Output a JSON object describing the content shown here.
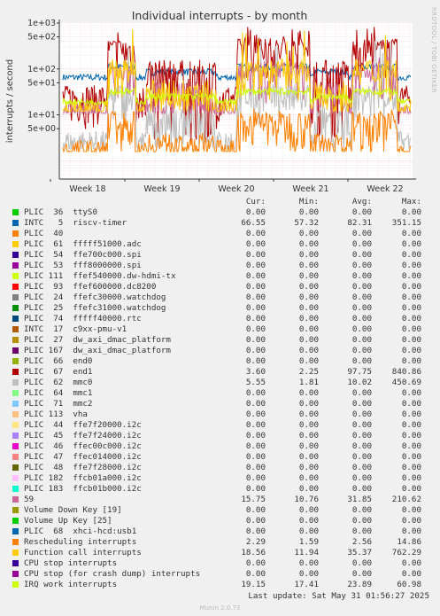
{
  "chart_data": {
    "type": "line",
    "title": "Individual interrupts - by month",
    "ylabel": "interrupts / second",
    "yscale": "log",
    "ylim": [
      0.4,
      1000
    ],
    "y_ticks": [
      {
        "value": 1000,
        "label": "1e+03"
      },
      {
        "value": 500,
        "label": "5e+02"
      },
      {
        "value": 100,
        "label": "1e+02"
      },
      {
        "value": 50,
        "label": "5e+01"
      },
      {
        "value": 10,
        "label": "1e+01"
      },
      {
        "value": 5,
        "label": "5e+00"
      }
    ],
    "x_ticks": [
      "Week 18",
      "Week 19",
      "Week 20",
      "Week 21",
      "Week 22"
    ],
    "columns": [
      "Cur:",
      "Min:",
      "Avg:",
      "Max:"
    ],
    "series": [
      {
        "label": "PLIC  36  ttyS0",
        "color": "#00cc00",
        "cur": "0.00",
        "min": "0.00",
        "avg": "0.00",
        "max": "0.00"
      },
      {
        "label": "INTC   5  riscv-timer",
        "color": "#0066b3",
        "cur": "66.55",
        "min": "57.32",
        "avg": "82.31",
        "max": "351.15"
      },
      {
        "label": "PLIC  40",
        "color": "#ff8000",
        "cur": "0.00",
        "min": "0.00",
        "avg": "0.00",
        "max": "0.00"
      },
      {
        "label": "PLIC  61  fffff51000.adc",
        "color": "#ffcc00",
        "cur": "0.00",
        "min": "0.00",
        "avg": "0.00",
        "max": "0.00"
      },
      {
        "label": "PLIC  54  ffe700c000.spi",
        "color": "#330099",
        "cur": "0.00",
        "min": "0.00",
        "avg": "0.00",
        "max": "0.00"
      },
      {
        "label": "PLIC  53  fff8000000.spi",
        "color": "#990099",
        "cur": "0.00",
        "min": "0.00",
        "avg": "0.00",
        "max": "0.00"
      },
      {
        "label": "PLIC 111  ffef540000.dw-hdmi-tx",
        "color": "#ccff00",
        "cur": "0.00",
        "min": "0.00",
        "avg": "0.00",
        "max": "0.00"
      },
      {
        "label": "PLIC  93  ffef600000.dc8200",
        "color": "#ff0000",
        "cur": "0.00",
        "min": "0.00",
        "avg": "0.00",
        "max": "0.00"
      },
      {
        "label": "PLIC  24  ffefc30000.watchdog",
        "color": "#808080",
        "cur": "0.00",
        "min": "0.00",
        "avg": "0.00",
        "max": "0.00"
      },
      {
        "label": "PLIC  25  ffefc31000.watchdog",
        "color": "#008f00",
        "cur": "0.00",
        "min": "0.00",
        "avg": "0.00",
        "max": "0.00"
      },
      {
        "label": "PLIC  74  fffff40000.rtc",
        "color": "#00487d",
        "cur": "0.00",
        "min": "0.00",
        "avg": "0.00",
        "max": "0.00"
      },
      {
        "label": "INTC  17  c9xx-pmu-v1",
        "color": "#b35a00",
        "cur": "0.00",
        "min": "0.00",
        "avg": "0.00",
        "max": "0.00"
      },
      {
        "label": "PLIC  27  dw_axi_dmac_platform",
        "color": "#b38f00",
        "cur": "0.00",
        "min": "0.00",
        "avg": "0.00",
        "max": "0.00"
      },
      {
        "label": "PLIC 167  dw_axi_dmac_platform",
        "color": "#6b006b",
        "cur": "0.00",
        "min": "0.00",
        "avg": "0.00",
        "max": "0.00"
      },
      {
        "label": "PLIC  66  end0",
        "color": "#8fb300",
        "cur": "0.00",
        "min": "0.00",
        "avg": "0.00",
        "max": "0.00"
      },
      {
        "label": "PLIC  67  end1",
        "color": "#b30000",
        "cur": "3.60",
        "min": "2.25",
        "avg": "97.75",
        "max": "840.86"
      },
      {
        "label": "PLIC  62  mmc0",
        "color": "#bebebe",
        "cur": "5.55",
        "min": "1.81",
        "avg": "10.02",
        "max": "450.69"
      },
      {
        "label": "PLIC  64  mmc1",
        "color": "#80ff80",
        "cur": "0.00",
        "min": "0.00",
        "avg": "0.00",
        "max": "0.00"
      },
      {
        "label": "PLIC  71  mmc2",
        "color": "#80c9ff",
        "cur": "0.00",
        "min": "0.00",
        "avg": "0.00",
        "max": "0.00"
      },
      {
        "label": "PLIC 113  vha",
        "color": "#ffc080",
        "cur": "0.00",
        "min": "0.00",
        "avg": "0.00",
        "max": "0.00"
      },
      {
        "label": "PLIC  44  ffe7f20000.i2c",
        "color": "#ffe680",
        "cur": "0.00",
        "min": "0.00",
        "avg": "0.00",
        "max": "0.00"
      },
      {
        "label": "PLIC  45  ffe7f24000.i2c",
        "color": "#aa80ff",
        "cur": "0.00",
        "min": "0.00",
        "avg": "0.00",
        "max": "0.00"
      },
      {
        "label": "PLIC  46  ffec00c000.i2c",
        "color": "#ee00cc",
        "cur": "0.00",
        "min": "0.00",
        "avg": "0.00",
        "max": "0.00"
      },
      {
        "label": "PLIC  47  ffec014000.i2c",
        "color": "#ff8080",
        "cur": "0.00",
        "min": "0.00",
        "avg": "0.00",
        "max": "0.00"
      },
      {
        "label": "PLIC  48  ffe7f28000.i2c",
        "color": "#666600",
        "cur": "0.00",
        "min": "0.00",
        "avg": "0.00",
        "max": "0.00"
      },
      {
        "label": "PLIC 182  ffcb01a000.i2c",
        "color": "#ffbfff",
        "cur": "0.00",
        "min": "0.00",
        "avg": "0.00",
        "max": "0.00"
      },
      {
        "label": "PLIC 183  ffcb01b000.i2c",
        "color": "#00ffcc",
        "cur": "0.00",
        "min": "0.00",
        "avg": "0.00",
        "max": "0.00"
      },
      {
        "label": "59",
        "color": "#cc6699",
        "cur": "15.75",
        "min": "10.76",
        "avg": "31.85",
        "max": "210.62"
      },
      {
        "label": "Volume Down Key [19]",
        "color": "#999900",
        "cur": "0.00",
        "min": "0.00",
        "avg": "0.00",
        "max": "0.00"
      },
      {
        "label": "Volume Up Key [25]",
        "color": "#00cc00",
        "cur": "0.00",
        "min": "0.00",
        "avg": "0.00",
        "max": "0.00"
      },
      {
        "label": "PLIC  68  xhci-hcd:usb1",
        "color": "#0066b3",
        "cur": "0.00",
        "min": "0.00",
        "avg": "0.00",
        "max": "0.00"
      },
      {
        "label": "Rescheduling interrupts",
        "color": "#ff8000",
        "cur": "2.29",
        "min": "1.59",
        "avg": "2.56",
        "max": "14.86"
      },
      {
        "label": "Function call interrupts",
        "color": "#ffcc00",
        "cur": "18.56",
        "min": "11.94",
        "avg": "35.37",
        "max": "762.29"
      },
      {
        "label": "CPU stop interrupts",
        "color": "#330099",
        "cur": "0.00",
        "min": "0.00",
        "avg": "0.00",
        "max": "0.00"
      },
      {
        "label": "CPU stop (for crash dump) interrupts",
        "color": "#990099",
        "cur": "0.00",
        "min": "0.00",
        "avg": "0.00",
        "max": "0.00"
      },
      {
        "label": "IRQ work interrupts",
        "color": "#ccff00",
        "cur": "19.15",
        "min": "17.41",
        "avg": "23.89",
        "max": "60.98"
      }
    ],
    "grid": true
  },
  "last_update": "Last update: Sat May 31 01:56:27 2025",
  "munin_version": "Munin 2.0.73",
  "rrdtool_label": "RRDTOOL / TOBI OETIKER"
}
